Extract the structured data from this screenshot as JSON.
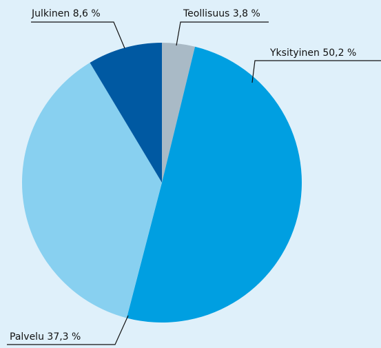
{
  "chart_data": {
    "type": "pie",
    "categories": [
      "Teollisuus",
      "Yksityinen",
      "Palvelu",
      "Julkinen"
    ],
    "values": [
      3.8,
      50.2,
      37.3,
      8.6
    ],
    "value_labels": [
      "3,8 %",
      "50,2 %",
      "37,3 %",
      "8,6 %"
    ],
    "colors": [
      "#a9bac6",
      "#009fe1",
      "#88d0f0",
      "#0059a2"
    ]
  }
}
